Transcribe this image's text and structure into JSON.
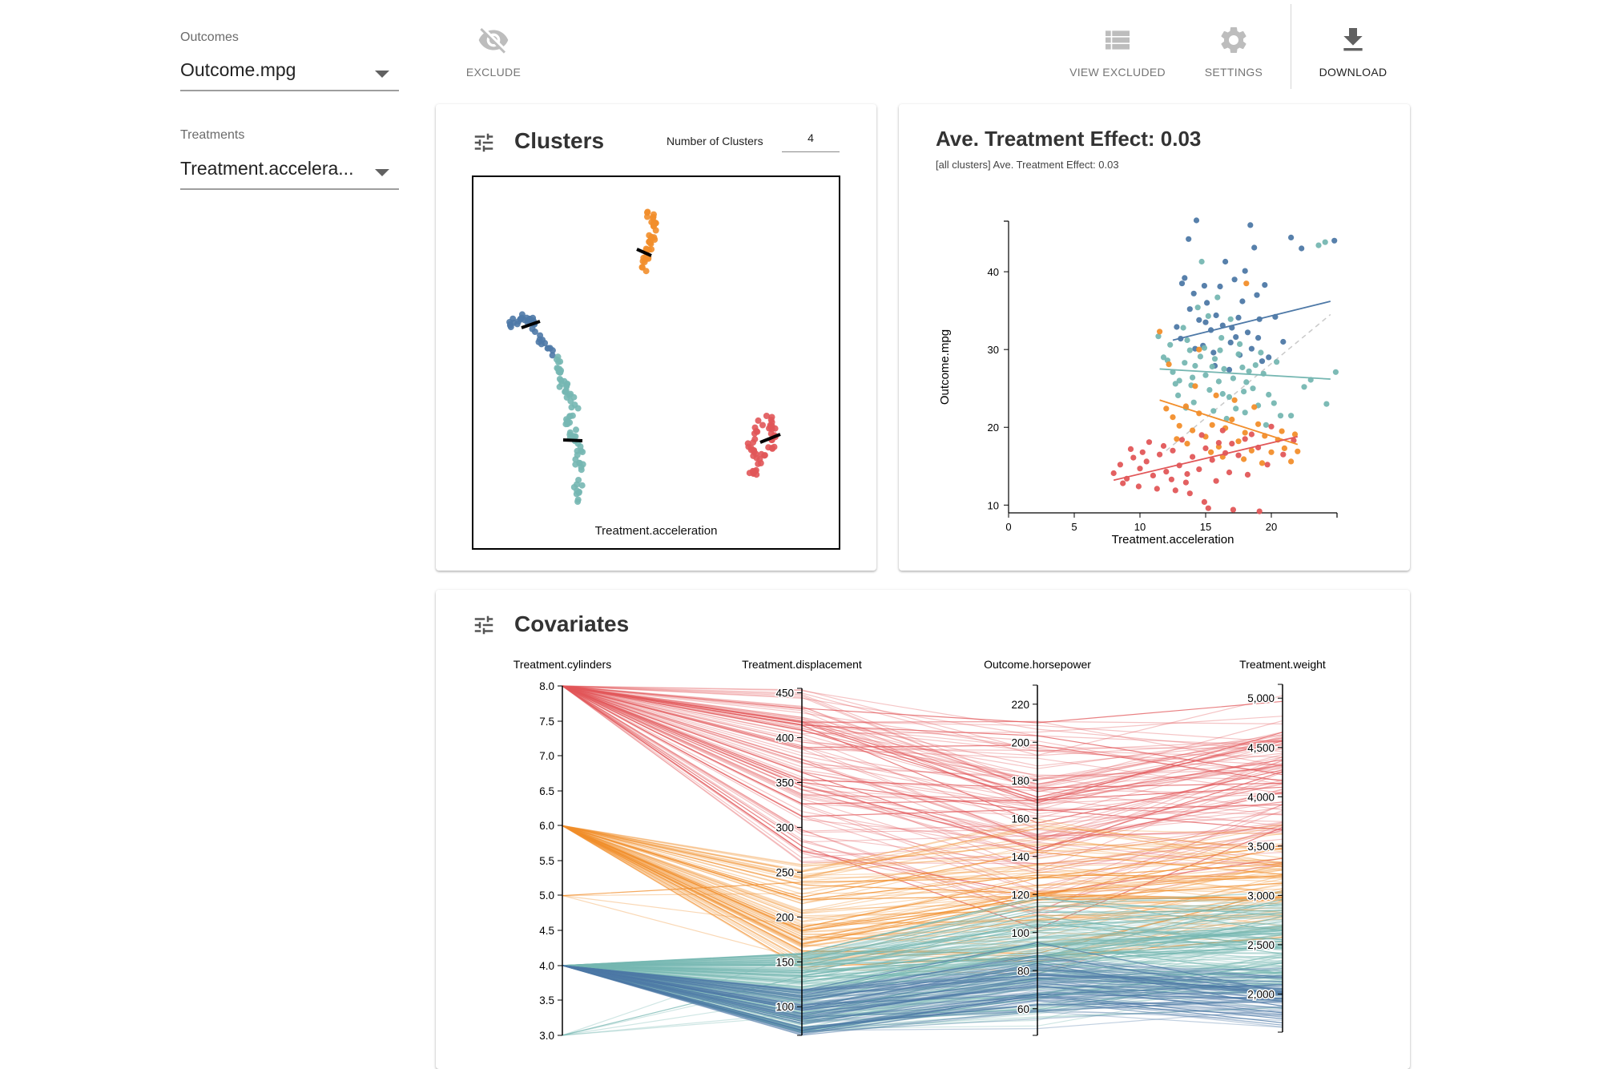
{
  "sidebar": {
    "outcomes_label": "Outcomes",
    "outcome_value": "Outcome.mpg",
    "treatments_label": "Treatments",
    "treatment_value": "Treatment.accelera..."
  },
  "toolbar": {
    "exclude_label": "EXCLUDE",
    "view_excluded_label": "VIEW EXCLUDED",
    "settings_label": "SETTINGS",
    "download_label": "DOWNLOAD"
  },
  "clusters": {
    "title": "Clusters",
    "num_label": "Number of Clusters",
    "num_value": "4",
    "xlabel": "Treatment.acceleration"
  },
  "ate": {
    "title": "Ave. Treatment Effect: 0.03",
    "subtitle": "[all clusters] Ave. Treatment Effect: 0.03"
  },
  "covariates": {
    "title": "Covariates"
  },
  "colors": {
    "blue": "#4e79a7",
    "teal": "#76b7b2",
    "orange": "#f28e2b",
    "red": "#e15759"
  },
  "chart_data": [
    {
      "type": "scatter",
      "title": "Ave. Treatment Effect: 0.03",
      "xlabel": "Treatment.acceleration",
      "ylabel": "Outcome.mpg",
      "xlim": [
        0,
        25
      ],
      "ylim": [
        9,
        46.5
      ],
      "xticks": [
        0,
        5,
        10,
        15,
        20
      ],
      "yticks": [
        10,
        20,
        30,
        40
      ],
      "series": [
        {
          "name": "blue",
          "color": "#4e79a7",
          "fit": [
            [
              12.5,
              31.2
            ],
            [
              24.5,
              36.2
            ]
          ],
          "points": [
            [
              13.2,
              38.5
            ],
            [
              14.1,
              37.2
            ],
            [
              15.1,
              36.0
            ],
            [
              15.8,
              34.4
            ],
            [
              16.3,
              33.1
            ],
            [
              17.0,
              32.8
            ],
            [
              17.5,
              34.1
            ],
            [
              18.2,
              32.2
            ],
            [
              19.0,
              31.5
            ],
            [
              13.8,
              35.2
            ],
            [
              14.5,
              33.8
            ],
            [
              15.4,
              32.5
            ],
            [
              16.9,
              30.9
            ],
            [
              18.5,
              30.1
            ],
            [
              19.8,
              29.0
            ],
            [
              14.8,
              30.5
            ],
            [
              13.1,
              31.4
            ],
            [
              12.8,
              32.9
            ],
            [
              16.1,
              38.1
            ],
            [
              17.8,
              36.2
            ],
            [
              18.9,
              37.0
            ],
            [
              16.5,
              41.3
            ],
            [
              17.2,
              39.0
            ],
            [
              18.7,
              43.1
            ],
            [
              19.5,
              38.3
            ],
            [
              14.3,
              46.6
            ],
            [
              13.7,
              44.2
            ],
            [
              18.4,
              46.0
            ],
            [
              21.5,
              44.4
            ],
            [
              22.3,
              43.0
            ],
            [
              24.8,
              44.0
            ],
            [
              20.3,
              34.2
            ],
            [
              19.3,
              28.5
            ],
            [
              15.7,
              27.9
            ],
            [
              16.8,
              27.4
            ],
            [
              17.3,
              31.6
            ],
            [
              15.0,
              33.5
            ],
            [
              13.4,
              39.2
            ],
            [
              18.0,
              40.1
            ],
            [
              14.9,
              38.2
            ],
            [
              20.9,
              31.0
            ],
            [
              17.6,
              29.3
            ],
            [
              14.2,
              30.1
            ],
            [
              15.6,
              29.6
            ],
            [
              19.1,
              33.9
            ]
          ]
        },
        {
          "name": "teal",
          "color": "#76b7b2",
          "fit": [
            [
              11.5,
              27.5
            ],
            [
              24.5,
              26.2
            ]
          ],
          "points": [
            [
              11.8,
              29.0
            ],
            [
              12.5,
              27.1
            ],
            [
              13.0,
              26.0
            ],
            [
              13.4,
              28.3
            ],
            [
              13.9,
              25.4
            ],
            [
              14.2,
              27.9
            ],
            [
              14.6,
              29.1
            ],
            [
              15.0,
              26.7
            ],
            [
              15.3,
              24.8
            ],
            [
              15.7,
              28.8
            ],
            [
              16.0,
              25.9
            ],
            [
              16.4,
              27.5
            ],
            [
              16.8,
              23.9
            ],
            [
              17.1,
              26.3
            ],
            [
              17.5,
              29.4
            ],
            [
              17.9,
              24.6
            ],
            [
              18.3,
              27.2
            ],
            [
              18.6,
              25.0
            ],
            [
              19.0,
              22.8
            ],
            [
              19.4,
              26.9
            ],
            [
              19.8,
              24.2
            ],
            [
              20.2,
              23.1
            ],
            [
              20.7,
              21.5
            ],
            [
              13.6,
              31.2
            ],
            [
              14.9,
              30.2
            ],
            [
              16.2,
              31.5
            ],
            [
              17.6,
              30.7
            ],
            [
              12.9,
              24.1
            ],
            [
              14.1,
              23.2
            ],
            [
              15.6,
              22.1
            ],
            [
              16.6,
              21.1
            ],
            [
              18.0,
              21.9
            ],
            [
              19.6,
              20.3
            ],
            [
              13.3,
              32.8
            ],
            [
              15.2,
              34.3
            ],
            [
              16.9,
              33.9
            ],
            [
              14.4,
              35.4
            ],
            [
              15.9,
              36.7
            ],
            [
              13.8,
              29.9
            ],
            [
              12.3,
              30.6
            ],
            [
              11.4,
              31.7
            ],
            [
              17.3,
              22.4
            ],
            [
              18.8,
              28.0
            ],
            [
              21.5,
              21.5
            ],
            [
              22.5,
              25.2
            ],
            [
              23.0,
              26.1
            ],
            [
              24.2,
              23.0
            ],
            [
              24.9,
              27.1
            ],
            [
              23.6,
              43.4
            ],
            [
              24.1,
              43.8
            ],
            [
              14.7,
              41.3
            ],
            [
              12.7,
              25.6
            ],
            [
              16.1,
              29.9
            ],
            [
              17.8,
              27.7
            ],
            [
              19.2,
              29.6
            ],
            [
              20.4,
              28.4
            ],
            [
              14.0,
              26.4
            ],
            [
              15.5,
              27.8
            ],
            [
              16.3,
              24.3
            ],
            [
              18.1,
              25.8
            ],
            [
              13.5,
              22.5
            ],
            [
              12.1,
              28.6
            ]
          ]
        },
        {
          "name": "orange",
          "color": "#f28e2b",
          "fit": [
            [
              11.5,
              23.5
            ],
            [
              22.0,
              17.8
            ]
          ],
          "points": [
            [
              11.5,
              32.3
            ],
            [
              12.0,
              22.4
            ],
            [
              12.5,
              21.3
            ],
            [
              13.0,
              20.2
            ],
            [
              13.5,
              22.7
            ],
            [
              14.0,
              19.6
            ],
            [
              14.5,
              21.8
            ],
            [
              15.0,
              18.8
            ],
            [
              15.5,
              20.3
            ],
            [
              16.0,
              17.5
            ],
            [
              16.5,
              19.9
            ],
            [
              17.0,
              21.0
            ],
            [
              17.5,
              18.2
            ],
            [
              18.0,
              19.3
            ],
            [
              18.5,
              17.0
            ],
            [
              19.0,
              20.4
            ],
            [
              19.5,
              18.9
            ],
            [
              20.0,
              16.8
            ],
            [
              20.5,
              18.4
            ],
            [
              21.0,
              17.3
            ],
            [
              21.5,
              15.6
            ],
            [
              22.0,
              16.9
            ],
            [
              14.2,
              25.3
            ],
            [
              15.8,
              24.1
            ],
            [
              17.2,
              23.5
            ],
            [
              18.7,
              22.6
            ],
            [
              12.8,
              18.5
            ],
            [
              16.3,
              16.2
            ],
            [
              19.3,
              15.4
            ],
            [
              13.6,
              17.9
            ],
            [
              15.4,
              16.8
            ],
            [
              17.9,
              15.9
            ],
            [
              20.8,
              19.5
            ],
            [
              21.8,
              19.1
            ],
            [
              18.1,
              38.5
            ],
            [
              14.5,
              30.0
            ],
            [
              12.2,
              28.1
            ]
          ]
        },
        {
          "name": "red",
          "color": "#e15759",
          "fit": [
            [
              8.0,
              13.2
            ],
            [
              22.0,
              18.8
            ]
          ],
          "points": [
            [
              8.0,
              14.1
            ],
            [
              8.5,
              15.2
            ],
            [
              9.0,
              13.4
            ],
            [
              9.5,
              16.1
            ],
            [
              10.0,
              14.7
            ],
            [
              10.5,
              15.6
            ],
            [
              11.0,
              13.8
            ],
            [
              11.5,
              16.5
            ],
            [
              12.0,
              14.3
            ],
            [
              12.5,
              17.0
            ],
            [
              13.0,
              15.1
            ],
            [
              13.5,
              12.9
            ],
            [
              14.0,
              16.2
            ],
            [
              14.5,
              14.6
            ],
            [
              15.0,
              17.3
            ],
            [
              15.5,
              15.8
            ],
            [
              16.0,
              18.0
            ],
            [
              16.5,
              16.7
            ],
            [
              17.0,
              17.9
            ],
            [
              17.5,
              16.4
            ],
            [
              18.0,
              18.5
            ],
            [
              18.5,
              19.1
            ],
            [
              19.0,
              17.4
            ],
            [
              20.0,
              20.1
            ],
            [
              8.7,
              12.8
            ],
            [
              9.9,
              12.4
            ],
            [
              11.3,
              12.1
            ],
            [
              12.7,
              11.9
            ],
            [
              13.8,
              11.5
            ],
            [
              14.9,
              10.4
            ],
            [
              15.2,
              9.6
            ],
            [
              17.1,
              9.4
            ],
            [
              10.7,
              18.1
            ],
            [
              11.8,
              17.6
            ],
            [
              13.2,
              18.4
            ],
            [
              14.7,
              19.0
            ],
            [
              16.3,
              19.6
            ],
            [
              12.4,
              13.3
            ],
            [
              13.6,
              14.0
            ],
            [
              10.2,
              16.8
            ],
            [
              9.3,
              17.2
            ],
            [
              15.8,
              13.1
            ],
            [
              16.8,
              14.2
            ],
            [
              18.2,
              13.9
            ],
            [
              19.7,
              15.2
            ],
            [
              20.9,
              16.5
            ],
            [
              21.7,
              18.3
            ],
            [
              19.1,
              9.2
            ]
          ]
        }
      ]
    },
    {
      "type": "parallel-coordinates",
      "title": "Covariates",
      "axes": [
        {
          "name": "Treatment.cylinders",
          "min": 3.0,
          "max": 8.0,
          "ticks": [
            "8.0",
            "7.5",
            "7.0",
            "6.5",
            "6.0",
            "5.5",
            "5.0",
            "4.5",
            "4.0",
            "3.5",
            "3.0"
          ]
        },
        {
          "name": "Treatment.displacement",
          "min": 68,
          "max": 455,
          "ticks": [
            "450",
            "400",
            "350",
            "300",
            "250",
            "200",
            "150",
            "100"
          ]
        },
        {
          "name": "Outcome.horsepower",
          "min": 46,
          "max": 230,
          "ticks": [
            "220",
            "200",
            "180",
            "160",
            "140",
            "120",
            "100",
            "80",
            "60"
          ]
        },
        {
          "name": "Treatment.weight",
          "min": 1613,
          "max": 5140,
          "ticks": [
            "5,000",
            "4,500",
            "4,000",
            "3,500",
            "3,000",
            "2,500",
            "2,000"
          ]
        }
      ],
      "clusters": [
        {
          "name": "red",
          "color": "#e15759",
          "cylinders": 8,
          "displacement": [
            260,
            455
          ],
          "horsepower": [
            90,
            230
          ],
          "weight": [
            3100,
            5140
          ]
        },
        {
          "name": "orange",
          "color": "#f28e2b",
          "cylinders": 6,
          "displacement": [
            140,
            260
          ],
          "horsepower": [
            72,
            165
          ],
          "weight": [
            2470,
            3800
          ]
        },
        {
          "name": "teal",
          "color": "#76b7b2",
          "cylinders": 4,
          "displacement": [
            70,
            160
          ],
          "horsepower": [
            48,
            120
          ],
          "weight": [
            1800,
            3100
          ]
        },
        {
          "name": "blue",
          "color": "#4e79a7",
          "cylinders": 4,
          "displacement": [
            68,
            120
          ],
          "horsepower": [
            46,
            97
          ],
          "weight": [
            1613,
            2300
          ]
        }
      ]
    }
  ]
}
